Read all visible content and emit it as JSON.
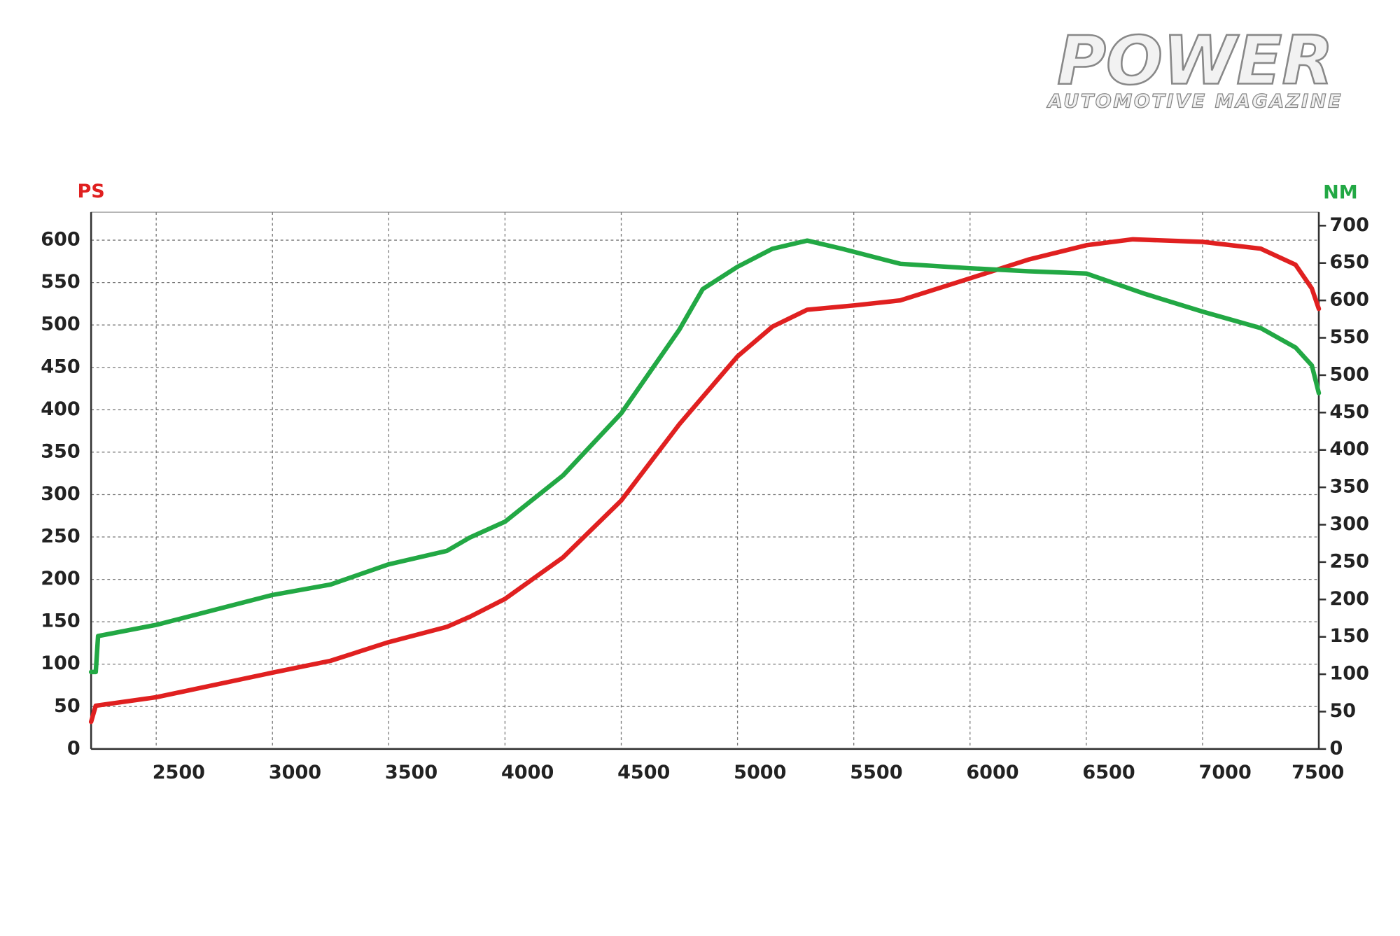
{
  "brand": {
    "name": "POWER",
    "tagline": "AUTOMOTIVE MAGAZINE"
  },
  "chart_data": {
    "type": "line",
    "y_label": "PS",
    "y2_label": "NM",
    "xlim": [
      2220,
      7500
    ],
    "xticks": [
      2500,
      3000,
      3500,
      4000,
      4500,
      5000,
      5500,
      6000,
      6500,
      7000,
      7500
    ],
    "ylim": [
      0,
      633
    ],
    "yticks": [
      0,
      50,
      100,
      150,
      200,
      250,
      300,
      350,
      400,
      450,
      500,
      550,
      600
    ],
    "y2lim": [
      0,
      718
    ],
    "y2ticks": [
      0,
      50,
      100,
      150,
      200,
      250,
      300,
      350,
      400,
      450,
      500,
      550,
      600,
      650,
      700
    ],
    "grid": true,
    "series": [
      {
        "name": "PS",
        "color": "#e02020",
        "x": [
          2220,
          2240,
          2500,
          3000,
          3250,
          3500,
          3750,
          3850,
          4000,
          4250,
          4500,
          4750,
          5000,
          5150,
          5300,
          5500,
          5700,
          6000,
          6250,
          6500,
          6700,
          7000,
          7250,
          7400,
          7470,
          7500
        ],
        "values": [
          32,
          51,
          61,
          90,
          104,
          126,
          144,
          156,
          177,
          226,
          293,
          383,
          463,
          498,
          518,
          523,
          529,
          555,
          577,
          594,
          601,
          598,
          590,
          571,
          543,
          519
        ]
      },
      {
        "name": "NM",
        "color": "#22a844",
        "axis": "y2",
        "x": [
          2220,
          2240,
          2250,
          2500,
          3000,
          3250,
          3500,
          3750,
          3850,
          4000,
          4250,
          4500,
          4750,
          4850,
          5000,
          5150,
          5300,
          5450,
          5700,
          6000,
          6250,
          6500,
          6750,
          7000,
          7250,
          7400,
          7470,
          7500
        ],
        "values": [
          103,
          103,
          151,
          166,
          206,
          220,
          247,
          265,
          283,
          304,
          366,
          449,
          561,
          615,
          645,
          669,
          680,
          669,
          649,
          643,
          639,
          636,
          609,
          585,
          563,
          537,
          513,
          476
        ]
      }
    ]
  }
}
